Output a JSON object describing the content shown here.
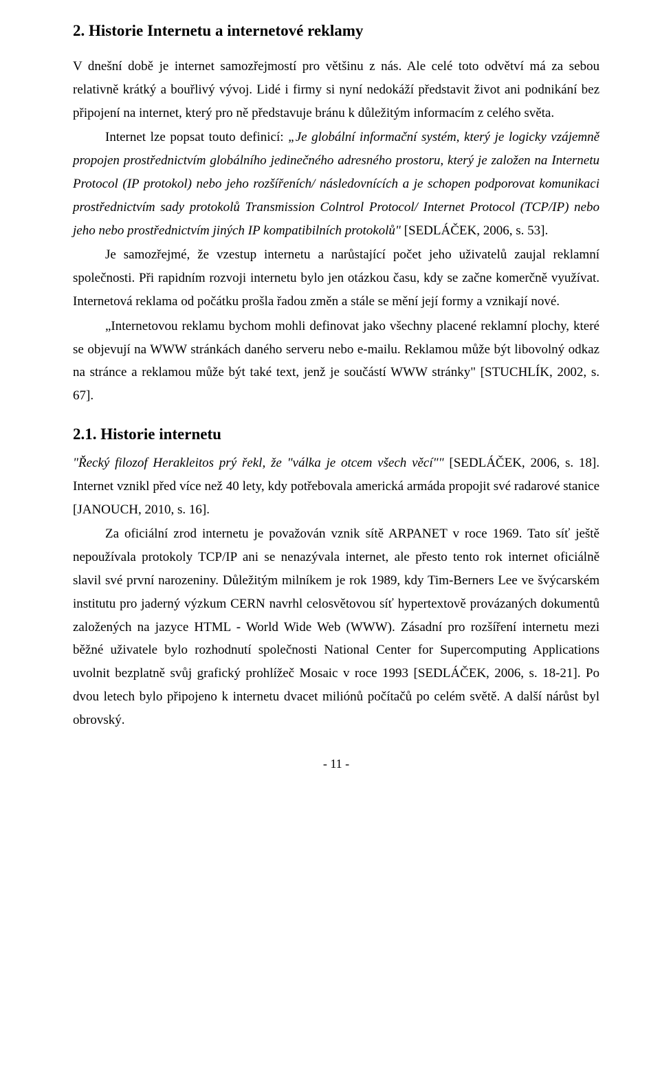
{
  "heading1": "2. Historie Internetu a internetové reklamy",
  "para1_pre": "V dnešní době je internet samozřejmostí pro většinu z nás. Ale celé toto odvětví má za sebou relativně krátký a bouřlivý vývoj. Lidé i firmy si nyní nedokáží představit život ani podnikání bez připojení na internet, který pro ně představuje bránu k důležitým informacím z celého světa.",
  "para2_lead": "Internet lze popsat touto definicí: ",
  "para2_italic": "„Je globální informační systém, který je logicky vzájemně propojen prostřednictvím globálního jedinečného adresného prostoru, který je založen na Internetu Protocol (IP protokol) nebo jeho rozšířeních/ následovnících a je schopen podporovat komunikaci prostřednictvím sady protokolů Transmission Colntrol Protocol/ Internet Protocol (TCP/IP) nebo jeho nebo prostřednictvím jiných IP kompatibilních protokolů\"",
  "para2_tail": " [SEDLÁČEK, 2006, s. 53].",
  "para3": "Je samozřejmé, že vzestup internetu a narůstající počet jeho uživatelů zaujal reklamní společnosti. Při rapidním rozvoji internetu bylo jen otázkou času, kdy se začne komerčně využívat. Internetová reklama od počátku prošla řadou změn a stále se mění její formy a vznikají nové.",
  "para4": "„Internetovou reklamu bychom mohli definovat jako všechny placené reklamní plochy, které se objevují na WWW stránkách daného serveru nebo e-mailu. Reklamou může být libovolný odkaz na stránce a reklamou může být také text, jenž je součástí WWW stránky\" [STUCHLÍK, 2002, s. 67].",
  "heading2": "2.1. Historie internetu",
  "para5_italic": "\"Řecký filozof Herakleitos prý řekl, že \"válka je otcem všech věcí\"\"",
  "para5_tail": " [SEDLÁČEK, 2006, s. 18]. Internet vznikl před více než 40 lety, kdy potřebovala americká armáda propojit své radarové stanice [JANOUCH, 2010, s. 16].",
  "para6": "Za oficiální zrod internetu je považován vznik sítě ARPANET v roce 1969. Tato síť ještě nepoužívala protokoly TCP/IP ani se nenazývala internet, ale přesto tento rok internet oficiálně slavil své první narozeniny. Důležitým milníkem je rok 1989, kdy Tim-Berners Lee ve švýcarském institutu pro jaderný výzkum CERN navrhl celosvětovou síť hypertextově provázaných dokumentů založených na jazyce HTML - World Wide Web (WWW). Zásadní pro rozšíření internetu mezi běžné uživatele bylo rozhodnutí společnosti National Center for Supercomputing Applications uvolnit bezplatně svůj grafický prohlížeč Mosaic v roce 1993 [SEDLÁČEK, 2006, s. 18-21]. Po dvou letech bylo připojeno k internetu dvacet miliónů počítačů po celém světě. A další nárůst byl obrovský.",
  "pagenum": "- 11 -"
}
